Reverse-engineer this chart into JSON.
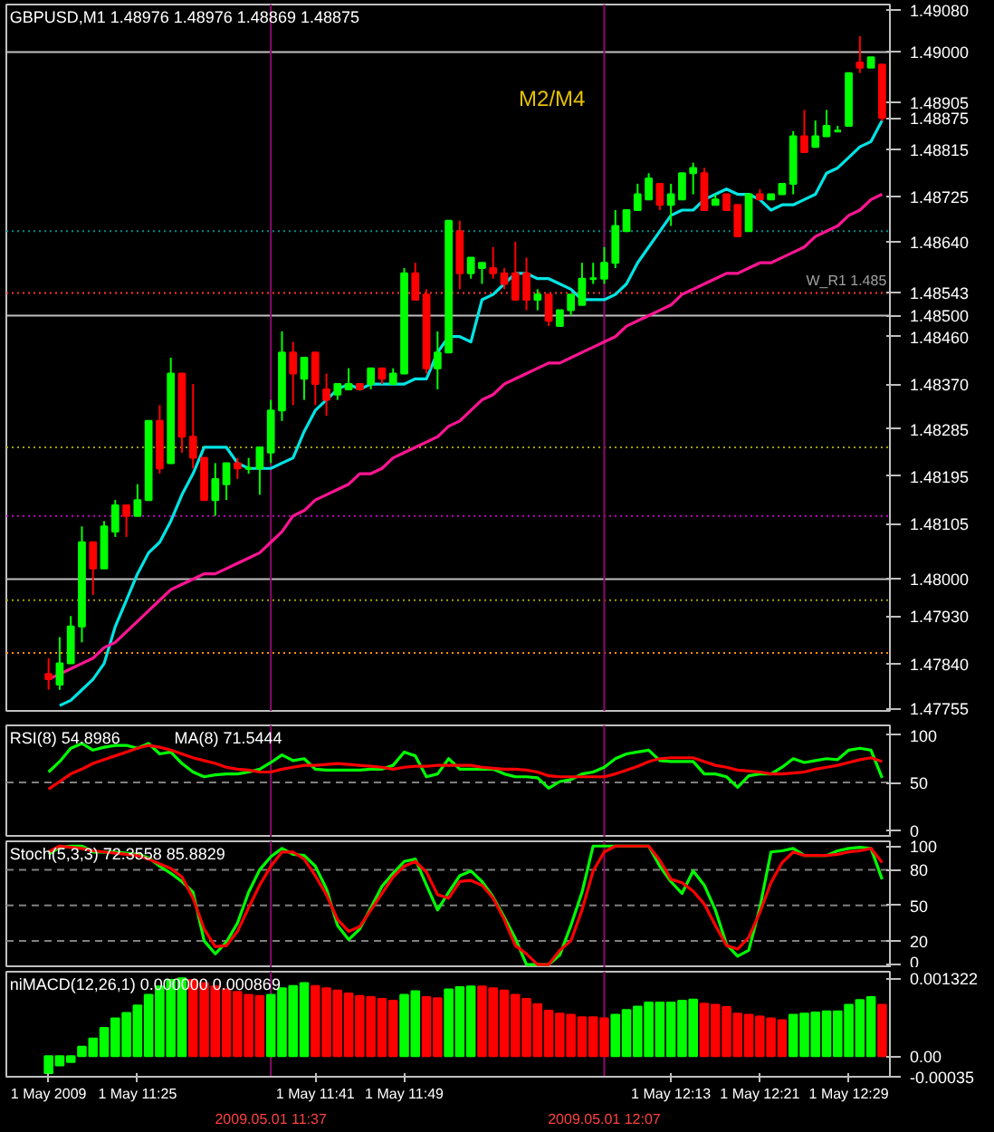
{
  "chart_data": [
    {
      "type": "candlestick",
      "title": "GBPUSD,M1  1.48976 1.48976 1.48869 1.48875",
      "categories": [
        "1 May 2009",
        null,
        null,
        null,
        null,
        null,
        null,
        null,
        "1 May 11:25",
        null,
        null,
        null,
        null,
        null,
        null,
        null,
        null,
        null,
        null,
        null,
        "2009.05.01 11:37",
        null,
        null,
        null,
        "1 May 11:41",
        null,
        null,
        null,
        null,
        null,
        null,
        null,
        "1 May 11:49",
        null,
        null,
        null,
        null,
        null,
        null,
        null,
        null,
        null,
        null,
        null,
        null,
        null,
        null,
        null,
        null,
        null,
        "2009.05.01 12:07",
        null,
        null,
        null,
        null,
        null,
        "1 May 12:13",
        null,
        null,
        null,
        null,
        null,
        null,
        null,
        "1 May 12:21",
        null,
        null,
        null,
        null,
        null,
        null,
        null,
        "1 May 12:29",
        null,
        null,
        null
      ],
      "ohlc": [
        [
          1.4782,
          1.4785,
          1.4779,
          1.4781
        ],
        [
          1.478,
          1.4789,
          1.4779,
          1.4784
        ],
        [
          1.4784,
          1.4793,
          1.4784,
          1.4791
        ],
        [
          1.4791,
          1.481,
          1.4788,
          1.4807
        ],
        [
          1.4807,
          1.4807,
          1.4797,
          1.4802
        ],
        [
          1.4802,
          1.4811,
          1.4802,
          1.481
        ],
        [
          1.4809,
          1.4815,
          1.4808,
          1.4814
        ],
        [
          1.4814,
          1.4814,
          1.4808,
          1.4812
        ],
        [
          1.4812,
          1.4818,
          1.4812,
          1.4815
        ],
        [
          1.4815,
          1.483,
          1.4815,
          1.483
        ],
        [
          1.483,
          1.4833,
          1.482,
          1.4821
        ],
        [
          1.4822,
          1.4842,
          1.4822,
          1.4839
        ],
        [
          1.4839,
          1.4839,
          1.4824,
          1.4827
        ],
        [
          1.4827,
          1.4837,
          1.4821,
          1.4823
        ],
        [
          1.4823,
          1.4823,
          1.4815,
          1.4815
        ],
        [
          1.4815,
          1.4822,
          1.4812,
          1.4819
        ],
        [
          1.4818,
          1.4822,
          1.4815,
          1.4822
        ],
        [
          1.4822,
          1.4823,
          1.4819,
          1.4821
        ],
        [
          1.4821,
          1.4823,
          1.482,
          1.4821
        ],
        [
          1.4821,
          1.4825,
          1.4816,
          1.4825
        ],
        [
          1.4824,
          1.4834,
          1.4822,
          1.4832
        ],
        [
          1.4832,
          1.4847,
          1.483,
          1.4843
        ],
        [
          1.4843,
          1.4845,
          1.4833,
          1.4839
        ],
        [
          1.4838,
          1.4842,
          1.4834,
          1.4842
        ],
        [
          1.4843,
          1.4843,
          1.4833,
          1.4837
        ],
        [
          1.4836,
          1.4839,
          1.4831,
          1.4834
        ],
        [
          1.4835,
          1.4837,
          1.4834,
          1.4837
        ],
        [
          1.4836,
          1.484,
          1.4836,
          1.4837
        ],
        [
          1.4837,
          1.4837,
          1.4836,
          1.4836
        ],
        [
          1.4837,
          1.484,
          1.4836,
          1.484
        ],
        [
          1.484,
          1.484,
          1.4837,
          1.4838
        ],
        [
          1.4837,
          1.484,
          1.4837,
          1.4839
        ],
        [
          1.4839,
          1.4859,
          1.4839,
          1.4858
        ],
        [
          1.4858,
          1.486,
          1.4853,
          1.4853
        ],
        [
          1.4854,
          1.4855,
          1.4839,
          1.484
        ],
        [
          1.484,
          1.4847,
          1.4836,
          1.4843
        ],
        [
          1.4843,
          1.4868,
          1.4843,
          1.4868
        ],
        [
          1.4866,
          1.4868,
          1.4855,
          1.4858
        ],
        [
          1.4858,
          1.4861,
          1.4857,
          1.4861
        ],
        [
          1.4859,
          1.486,
          1.4856,
          1.486
        ],
        [
          1.4859,
          1.4863,
          1.4857,
          1.4858
        ],
        [
          1.4858,
          1.4859,
          1.4855,
          1.4856
        ],
        [
          1.4858,
          1.4864,
          1.4853,
          1.4853
        ],
        [
          1.4858,
          1.4861,
          1.4851,
          1.4853
        ],
        [
          1.4853,
          1.4855,
          1.4851,
          1.4854
        ],
        [
          1.4854,
          1.4854,
          1.4848,
          1.4849
        ],
        [
          1.4848,
          1.4851,
          1.4848,
          1.4851
        ],
        [
          1.4851,
          1.4854,
          1.485,
          1.4854
        ],
        [
          1.4852,
          1.486,
          1.4852,
          1.4857
        ],
        [
          1.4857,
          1.486,
          1.4856,
          1.4857
        ],
        [
          1.4857,
          1.4863,
          1.4856,
          1.486
        ],
        [
          1.486,
          1.487,
          1.4859,
          1.4867
        ],
        [
          1.4866,
          1.487,
          1.4866,
          1.487
        ],
        [
          1.487,
          1.4875,
          1.487,
          1.4873
        ],
        [
          1.4872,
          1.4877,
          1.4872,
          1.4876
        ],
        [
          1.4875,
          1.4875,
          1.487,
          1.4871
        ],
        [
          1.4871,
          1.4875,
          1.4867,
          1.4873
        ],
        [
          1.4872,
          1.4877,
          1.4872,
          1.4877
        ],
        [
          1.4877,
          1.4879,
          1.4873,
          1.4878
        ],
        [
          1.4877,
          1.4878,
          1.487,
          1.487
        ],
        [
          1.4871,
          1.4873,
          1.4871,
          1.4872
        ],
        [
          1.4873,
          1.4873,
          1.487,
          1.487
        ],
        [
          1.4871,
          1.4871,
          1.4865,
          1.4865
        ],
        [
          1.4866,
          1.4873,
          1.4866,
          1.4873
        ],
        [
          1.4873,
          1.4874,
          1.4872,
          1.4872
        ],
        [
          1.4872,
          1.4873,
          1.4872,
          1.4873
        ],
        [
          1.4873,
          1.4875,
          1.4873,
          1.4875
        ],
        [
          1.4875,
          1.4885,
          1.4873,
          1.4884
        ],
        [
          1.4884,
          1.4889,
          1.4881,
          1.4881
        ],
        [
          1.4882,
          1.4887,
          1.4882,
          1.4884
        ],
        [
          1.4884,
          1.4889,
          1.4884,
          1.4886
        ],
        [
          1.4885,
          1.4886,
          1.4885,
          1.4885
        ],
        [
          1.4886,
          1.4896,
          1.4886,
          1.4896
        ],
        [
          1.4898,
          1.4903,
          1.4896,
          1.4897
        ],
        [
          1.4897,
          1.4899,
          1.4897,
          1.4899
        ],
        [
          1.48976,
          1.48976,
          1.48869,
          1.48875
        ]
      ],
      "series": [
        {
          "type": "line",
          "color": "#00e5e5",
          "values": [
            null,
            1.4776,
            1.4777,
            1.4779,
            1.4781,
            1.4784,
            1.4791,
            1.4796,
            1.4801,
            1.4805,
            1.4807,
            1.4811,
            1.4816,
            1.482,
            1.4825,
            1.4825,
            1.4825,
            1.4822,
            1.4821,
            1.4821,
            1.4821,
            1.4822,
            1.4823,
            1.4828,
            1.4832,
            1.4834,
            1.4836,
            1.4837,
            1.4836,
            1.4837,
            1.4837,
            1.4837,
            1.4837,
            1.4838,
            1.4838,
            1.4843,
            1.4846,
            1.4846,
            1.4845,
            1.4853,
            1.4854,
            1.4856,
            1.4858,
            1.4858,
            1.4857,
            1.4857,
            1.4856,
            1.4855,
            1.4853,
            1.4853,
            1.4853,
            1.4854,
            1.4856,
            1.486,
            1.4863,
            1.4866,
            1.4869,
            1.487,
            1.487,
            1.4872,
            1.4873,
            1.4874,
            1.4873,
            1.4873,
            1.4872,
            1.487,
            1.4871,
            1.4871,
            1.4872,
            1.4873,
            1.4877,
            1.4878,
            1.488,
            1.4882,
            1.4883,
            1.4887
          ]
        },
        {
          "type": "line",
          "color": "#ff1493",
          "values": [
            1.4781,
            1.4782,
            1.4783,
            1.4784,
            1.4785,
            1.4787,
            1.4788,
            1.479,
            1.4792,
            1.4794,
            1.4796,
            1.4798,
            1.4799,
            1.48,
            1.4801,
            1.4801,
            1.4802,
            1.4803,
            1.4804,
            1.4805,
            1.4807,
            1.4809,
            1.4812,
            1.4813,
            1.4815,
            1.4816,
            1.4817,
            1.4818,
            1.482,
            1.482,
            1.4821,
            1.4823,
            1.4824,
            1.4825,
            1.4826,
            1.4827,
            1.4829,
            1.483,
            1.4832,
            1.4834,
            1.4835,
            1.4837,
            1.4838,
            1.4839,
            1.484,
            1.4841,
            1.4841,
            1.4842,
            1.4843,
            1.4844,
            1.4845,
            1.4846,
            1.4848,
            1.4849,
            1.485,
            1.4851,
            1.4852,
            1.4854,
            1.4855,
            1.4856,
            1.4857,
            1.4858,
            1.4858,
            1.4859,
            1.486,
            1.486,
            1.4861,
            1.4862,
            1.4863,
            1.4865,
            1.4866,
            1.4867,
            1.4869,
            1.487,
            1.4872,
            1.4873
          ]
        }
      ],
      "ylim": [
        1.4775,
        1.4909
      ],
      "yticks": [
        {
          "value": 1.4908,
          "label": "1.49080"
        },
        {
          "value": 1.48905,
          "label": "1.48905"
        },
        {
          "value": 1.48875,
          "label": "1.48875"
        },
        {
          "value": 1.48815,
          "label": "1.48815"
        },
        {
          "value": 1.48725,
          "label": "1.48725"
        },
        {
          "value": 1.4864,
          "label": "1.48640"
        },
        {
          "value": 1.4846,
          "label": "1.48460"
        },
        {
          "value": 1.4837,
          "label": "1.48370"
        },
        {
          "value": 1.48285,
          "label": "1.48285"
        },
        {
          "value": 1.48195,
          "label": "1.48195"
        },
        {
          "value": 1.48105,
          "label": "1.48105"
        },
        {
          "value": 1.4793,
          "label": "1.47930"
        },
        {
          "value": 1.4784,
          "label": "1.47840"
        },
        {
          "value": 1.47755,
          "label": "1.47755"
        }
      ],
      "ref_lines": [
        {
          "axis": "y",
          "value": 1.49,
          "label": "1.49000",
          "color": "#c0c0c0",
          "line_style": "solid"
        },
        {
          "axis": "y",
          "value": 1.4866,
          "label": null,
          "color": "#008b8b",
          "line_style": "dotted"
        },
        {
          "axis": "y",
          "value": 1.48543,
          "label": "1.48543",
          "color": "#ff3030",
          "line_style": "dotted"
        },
        {
          "axis": "y",
          "value": 1.485,
          "label": "1.48500",
          "color": "#c0c0c0",
          "line_style": "solid"
        },
        {
          "axis": "y",
          "value": 1.4825,
          "label": null,
          "color": "#a0a000",
          "line_style": "dotted"
        },
        {
          "axis": "y",
          "value": 1.4812,
          "label": null,
          "color": "#c000c0",
          "line_style": "dotted"
        },
        {
          "axis": "y",
          "value": 1.48,
          "label": "1.48000",
          "color": "#c0c0c0",
          "line_style": "solid"
        },
        {
          "axis": "y",
          "value": 1.4796,
          "label": null,
          "color": "#a0a000",
          "line_style": "dotted"
        },
        {
          "axis": "y",
          "value": 1.4786,
          "label": null,
          "color": "#ff8c00",
          "line_style": "dotted"
        },
        {
          "axis": "x",
          "value": "2009.05.01 11:37",
          "label": null,
          "color": "#8b0a6a",
          "line_style": "solid"
        },
        {
          "axis": "x",
          "value": "2009.05.01 12:07",
          "label": null,
          "color": "#8b0a6a",
          "line_style": "solid"
        }
      ],
      "annotations": [
        "M2/M4",
        "W_R1 1.485"
      ],
      "tick_labels": "y"
    },
    {
      "type": "line",
      "title": "RSI(8) 54.8986",
      "categories": [
        "1 May 2009",
        null,
        null,
        null,
        null,
        null,
        null,
        null,
        "1 May 11:25",
        null,
        null,
        null,
        null,
        null,
        null,
        null,
        null,
        null,
        null,
        null,
        "2009.05.01 11:37",
        null,
        null,
        null,
        "1 May 11:41",
        null,
        null,
        null,
        null,
        null,
        null,
        null,
        "1 May 11:49",
        null,
        null,
        null,
        null,
        null,
        null,
        null,
        null,
        null,
        null,
        null,
        null,
        null,
        null,
        null,
        null,
        null,
        "2009.05.01 12:07",
        null,
        null,
        null,
        null,
        null,
        "1 May 12:13",
        null,
        null,
        null,
        null,
        null,
        null,
        null,
        "1 May 12:21",
        null,
        null,
        null,
        null,
        null,
        null,
        null,
        "1 May 12:29",
        null,
        null,
        null
      ],
      "series": [
        {
          "color": "#00ff00",
          "values": [
            61,
            72,
            86,
            91,
            84,
            87,
            89,
            89,
            86,
            91,
            80,
            82,
            70,
            61,
            56,
            58,
            59,
            59,
            61,
            64,
            71,
            79,
            73,
            75,
            64,
            63,
            63,
            63,
            63,
            64,
            64,
            68,
            82,
            78,
            56,
            59,
            75,
            64,
            64,
            64,
            64,
            59,
            56,
            56,
            55,
            44,
            51,
            53,
            59,
            61,
            66,
            75,
            80,
            82,
            84,
            73,
            72,
            72,
            72,
            59,
            59,
            56,
            45,
            57,
            59,
            59,
            66,
            75,
            71,
            73,
            75,
            74,
            84,
            86,
            84,
            55
          ]
        },
        {
          "color": "#ff0000",
          "values": [
            43,
            51,
            59,
            64,
            70,
            74,
            78,
            82,
            86,
            89,
            87,
            84,
            80,
            76,
            73,
            70,
            66,
            64,
            63,
            61,
            61,
            64,
            66,
            68,
            68,
            69,
            70,
            69,
            68,
            67,
            66,
            64,
            66,
            67,
            67,
            68,
            68,
            68,
            68,
            66,
            65,
            64,
            64,
            63,
            61,
            57,
            56,
            56,
            56,
            56,
            56,
            59,
            63,
            67,
            72,
            75,
            76,
            76,
            76,
            72,
            68,
            66,
            63,
            62,
            61,
            59,
            59,
            60,
            61,
            64,
            66,
            68,
            71,
            74,
            76,
            72
          ]
        }
      ],
      "ylim": [
        -8,
        110
      ],
      "yticks": [
        0,
        50,
        100
      ],
      "ref_lines": [
        {
          "axis": "y",
          "value": 50,
          "label": null,
          "color": "#808080",
          "line_style": "dashed"
        },
        {
          "axis": "x",
          "value": "2009.05.01 11:37",
          "label": null,
          "color": "#8b0a6a",
          "line_style": "solid"
        },
        {
          "axis": "x",
          "value": "2009.05.01 12:07",
          "label": null,
          "color": "#8b0a6a",
          "line_style": "solid"
        }
      ],
      "annotations": [
        "MA(8) 71.5444"
      ],
      "tick_labels": "y"
    },
    {
      "type": "line",
      "title": "Stoch(5,3,3) 72.3558 85.8829",
      "categories": [
        "1 May 2009",
        null,
        null,
        null,
        null,
        null,
        null,
        null,
        "1 May 11:25",
        null,
        null,
        null,
        null,
        null,
        null,
        null,
        null,
        null,
        null,
        null,
        "2009.05.01 11:37",
        null,
        null,
        null,
        "1 May 11:41",
        null,
        null,
        null,
        null,
        null,
        null,
        null,
        "1 May 11:49",
        null,
        null,
        null,
        null,
        null,
        null,
        null,
        null,
        null,
        null,
        null,
        null,
        null,
        null,
        null,
        null,
        null,
        "2009.05.01 12:07",
        null,
        null,
        null,
        null,
        null,
        "1 May 12:13",
        null,
        null,
        null,
        null,
        null,
        null,
        null,
        "1 May 12:21",
        null,
        null,
        null,
        null,
        null,
        null,
        null,
        "1 May 12:29",
        null,
        null,
        null
      ],
      "series": [
        {
          "color": "#00ff00",
          "values": [
            93,
            99,
            100,
            100,
            95,
            95,
            95,
            94,
            93,
            90,
            83,
            77,
            70,
            61,
            20,
            9,
            19,
            35,
            61,
            80,
            91,
            98,
            93,
            92,
            83,
            64,
            33,
            21,
            30,
            48,
            66,
            77,
            87,
            89,
            67,
            46,
            61,
            75,
            79,
            70,
            57,
            40,
            22,
            0,
            0,
            0,
            8,
            33,
            61,
            100,
            100,
            100,
            100,
            100,
            100,
            83,
            70,
            60,
            79,
            67,
            46,
            17,
            7,
            12,
            48,
            95,
            96,
            98,
            92,
            92,
            92,
            96,
            98,
            99,
            98,
            72
          ]
        },
        {
          "color": "#ff0000",
          "values": [
            95,
            100,
            99,
            98,
            96,
            95,
            94,
            93,
            92,
            89,
            85,
            81,
            74,
            56,
            30,
            15,
            16,
            28,
            48,
            67,
            83,
            95,
            95,
            89,
            75,
            59,
            38,
            28,
            32,
            46,
            60,
            74,
            83,
            87,
            78,
            59,
            56,
            70,
            71,
            67,
            56,
            38,
            16,
            9,
            0,
            0,
            12,
            20,
            46,
            79,
            95,
            100,
            100,
            100,
            100,
            88,
            72,
            69,
            62,
            51,
            33,
            16,
            13,
            23,
            44,
            69,
            86,
            95,
            92,
            92,
            92,
            93,
            95,
            96,
            98,
            86
          ]
        }
      ],
      "ylim": [
        -3,
        104
      ],
      "yticks": [
        0,
        20,
        50,
        80,
        100
      ],
      "ref_lines": [
        {
          "axis": "y",
          "value": 80,
          "label": null,
          "color": "#808080",
          "line_style": "dashed"
        },
        {
          "axis": "y",
          "value": 50,
          "label": null,
          "color": "#808080",
          "line_style": "dashed"
        },
        {
          "axis": "y",
          "value": 20,
          "label": null,
          "color": "#808080",
          "line_style": "dashed"
        },
        {
          "axis": "x",
          "value": "2009.05.01 11:37",
          "label": null,
          "color": "#8b0a6a",
          "line_style": "solid"
        },
        {
          "axis": "x",
          "value": "2009.05.01 12:07",
          "label": null,
          "color": "#8b0a6a",
          "line_style": "solid"
        }
      ],
      "tick_labels": "y"
    },
    {
      "type": "bar",
      "title": "niMACD(12,26,1) 0.000000 0.000869",
      "categories": [
        "1 May 2009",
        null,
        null,
        null,
        null,
        null,
        null,
        null,
        "1 May 11:25",
        null,
        null,
        null,
        null,
        null,
        null,
        null,
        null,
        null,
        null,
        null,
        "2009.05.01 11:37",
        null,
        null,
        null,
        "1 May 11:41",
        null,
        null,
        null,
        null,
        null,
        null,
        null,
        "1 May 11:49",
        null,
        null,
        null,
        null,
        null,
        null,
        null,
        null,
        null,
        null,
        null,
        null,
        null,
        null,
        null,
        null,
        null,
        "2009.05.01 12:07",
        null,
        null,
        null,
        null,
        null,
        "1 May 12:13",
        null,
        null,
        null,
        null,
        null,
        null,
        null,
        "1 May 12:21",
        null,
        null,
        null,
        null,
        null,
        null,
        null,
        "1 May 12:29",
        null,
        null,
        null
      ],
      "values": [
        -0.00029,
        -0.00016,
        -0.0001,
        0.00016,
        0.0003,
        0.00048,
        0.00064,
        0.00073,
        0.00086,
        0.00104,
        0.00118,
        0.00129,
        0.00132,
        0.00129,
        0.00124,
        0.00118,
        0.00113,
        0.00109,
        0.00104,
        0.00102,
        0.00104,
        0.00115,
        0.00119,
        0.00124,
        0.00119,
        0.00115,
        0.00111,
        0.00106,
        0.00102,
        0.001,
        0.00097,
        0.00094,
        0.00104,
        0.0011,
        0.001,
        0.00098,
        0.00113,
        0.00117,
        0.00118,
        0.00118,
        0.00115,
        0.00111,
        0.00104,
        0.00097,
        0.00088,
        0.00077,
        0.00072,
        0.0007,
        0.00066,
        0.00066,
        0.00064,
        0.0007,
        0.00078,
        0.00084,
        0.00091,
        0.00091,
        0.00091,
        0.00094,
        0.00096,
        0.00089,
        0.00087,
        0.00083,
        0.00072,
        0.0007,
        0.00067,
        0.00064,
        0.00061,
        0.0007,
        0.00072,
        0.00074,
        0.00076,
        0.00076,
        0.00087,
        0.00095,
        0.001,
        0.00087
      ],
      "colors": [
        "#00ff00",
        "#00ff00",
        "#00ff00",
        "#00ff00",
        "#00ff00",
        "#00ff00",
        "#00ff00",
        "#00ff00",
        "#00ff00",
        "#00ff00",
        "#00ff00",
        "#00ff00",
        "#00ff00",
        "#ff0000",
        "#ff0000",
        "#ff0000",
        "#ff0000",
        "#ff0000",
        "#ff0000",
        "#ff0000",
        "#00ff00",
        "#00ff00",
        "#00ff00",
        "#00ff00",
        "#ff0000",
        "#ff0000",
        "#ff0000",
        "#ff0000",
        "#ff0000",
        "#ff0000",
        "#ff0000",
        "#ff0000",
        "#00ff00",
        "#00ff00",
        "#ff0000",
        "#ff0000",
        "#00ff00",
        "#00ff00",
        "#00ff00",
        "#ff0000",
        "#ff0000",
        "#ff0000",
        "#ff0000",
        "#ff0000",
        "#ff0000",
        "#ff0000",
        "#ff0000",
        "#ff0000",
        "#ff0000",
        "#ff0000",
        "#ff0000",
        "#00ff00",
        "#00ff00",
        "#00ff00",
        "#00ff00",
        "#00ff00",
        "#00ff00",
        "#00ff00",
        "#00ff00",
        "#ff0000",
        "#ff0000",
        "#ff0000",
        "#ff0000",
        "#ff0000",
        "#ff0000",
        "#ff0000",
        "#ff0000",
        "#00ff00",
        "#00ff00",
        "#00ff00",
        "#00ff00",
        "#00ff00",
        "#00ff00",
        "#00ff00",
        "#00ff00",
        "#ff0000"
      ],
      "ylim": [
        -0.00035,
        0.00143
      ],
      "yticks": [
        {
          "value": 0.001322,
          "label": "0.001322"
        },
        {
          "value": 0,
          "label": "0.00"
        },
        {
          "value": -0.00035,
          "label": "-0.00035"
        }
      ],
      "ref_lines": [
        {
          "axis": "x",
          "value": "2009.05.01 11:37",
          "label": null,
          "color": "#8b0a6a",
          "line_style": "solid"
        },
        {
          "axis": "x",
          "value": "2009.05.01 12:07",
          "label": null,
          "color": "#8b0a6a",
          "line_style": "solid"
        }
      ]
    }
  ]
}
